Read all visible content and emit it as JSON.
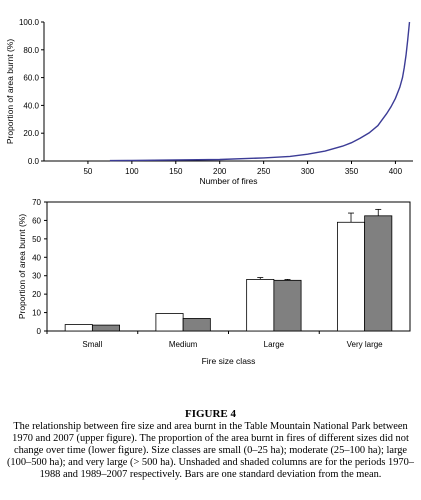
{
  "chart_data": [
    {
      "type": "line",
      "xlabel": "Number of fires",
      "ylabel": "Proportion of area burnt (%)",
      "xlim": [
        0,
        420
      ],
      "ylim": [
        0,
        100
      ],
      "x_ticks": [
        "50",
        "100",
        "150",
        "200",
        "250",
        "300",
        "350",
        "400"
      ],
      "y_ticks": [
        "0.0",
        "20.0",
        "40.0",
        "60.0",
        "80.0",
        "100.0"
      ],
      "series": [
        {
          "color": "#3c3c96",
          "x": [
            75,
            100,
            150,
            200,
            250,
            280,
            300,
            320,
            340,
            350,
            360,
            370,
            380,
            390,
            395,
            400,
            405,
            408,
            410,
            412,
            414,
            416
          ],
          "y": [
            0.3,
            0.4,
            0.7,
            1.1,
            2.2,
            3.3,
            4.9,
            7.1,
            10.7,
            13.2,
            16.5,
            20.2,
            25.5,
            34,
            39,
            45,
            53,
            60,
            67,
            76,
            87,
            100
          ]
        }
      ]
    },
    {
      "type": "bar",
      "xlabel": "Fire size class",
      "ylabel": "Proportion of area burnt (%)",
      "ylim": [
        0,
        70
      ],
      "y_ticks": [
        "0",
        "10",
        "20",
        "30",
        "40",
        "50",
        "60",
        "70"
      ],
      "categories": [
        "Small",
        "Medium",
        "Large",
        "Very large"
      ],
      "series": [
        {
          "period": "1970-1988",
          "color": "#ffffff",
          "values": [
            3.5,
            9.5,
            28,
            59
          ],
          "errors": [
            0,
            0,
            1,
            5
          ]
        },
        {
          "period": "1989-2007",
          "color": "#808080",
          "values": [
            3.2,
            6.8,
            27.5,
            62.5
          ],
          "errors": [
            0,
            0,
            0.5,
            3.5
          ]
        }
      ]
    }
  ],
  "caption": {
    "title": "FIGURE 4",
    "text": "The relationship between fire size and area burnt in the Table Mountain National Park between 1970 and 2007 (upper figure). The proportion of the area burnt in fires of different sizes did not change over time (lower figure). Size classes are small (0–25 ha); moderate (25–100 ha); large (100–500 ha); and very large (> 500 ha). Unshaded and shaded columns are for the periods 1970–1988 and 1989–2007 respectively. Bars are one standard deviation from the mean."
  }
}
